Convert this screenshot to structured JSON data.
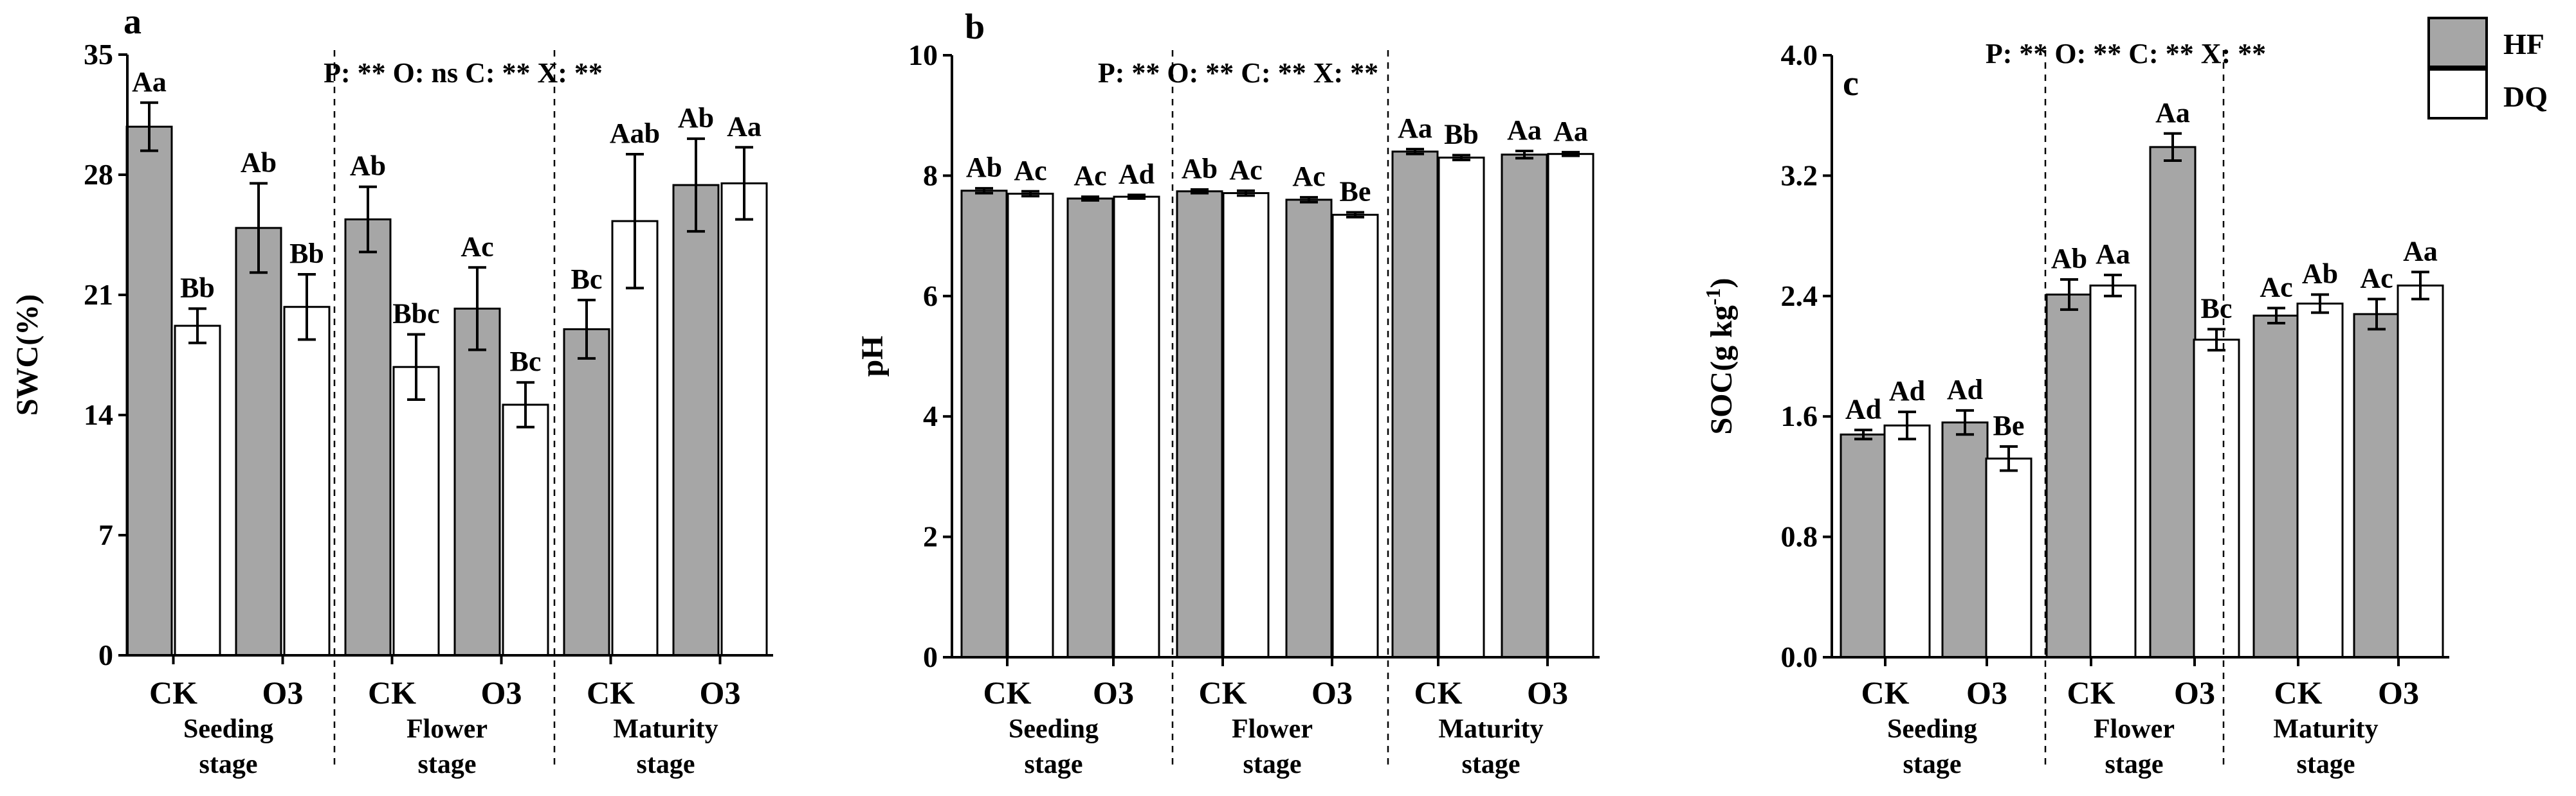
{
  "colors": {
    "HF": "#a6a6a6",
    "DQ": "#ffffff",
    "axis": "#000000"
  },
  "legend": {
    "entries": [
      "HF",
      "DQ"
    ]
  },
  "chart_data": [
    {
      "type": "bar",
      "panel": "a",
      "ylabel": "SWC(%)",
      "ylim": [
        0,
        35
      ],
      "yticks": [
        "0",
        "7",
        "14",
        "21",
        "28",
        "35"
      ],
      "categories": [
        "CK",
        "O3",
        "CK",
        "O3",
        "CK",
        "O3"
      ],
      "stages": [
        [
          "Seeding",
          "stage"
        ],
        [
          "Flower",
          "stage"
        ],
        [
          "Maturity",
          "stage"
        ]
      ],
      "stats_text": "P: ** O: ns C: ** X: **",
      "series": [
        {
          "name": "HF",
          "values": [
            30.8,
            24.9,
            25.4,
            20.2,
            19.0,
            27.4
          ],
          "errors": [
            1.4,
            2.6,
            1.9,
            2.4,
            1.7,
            2.7
          ],
          "labels": [
            "Aa",
            "Ab",
            "Ab",
            "Ac",
            "Bc",
            "Ab"
          ]
        },
        {
          "name": "DQ",
          "values": [
            19.2,
            20.3,
            16.8,
            14.6,
            25.3,
            27.5
          ],
          "errors": [
            1.0,
            1.9,
            1.9,
            1.3,
            3.9,
            2.1
          ],
          "labels": [
            "Bb",
            "Bb",
            "Bbc",
            "Bc",
            "Aab",
            "Aa"
          ]
        }
      ]
    },
    {
      "type": "bar",
      "panel": "b",
      "ylabel": "pH",
      "ylim": [
        0,
        10
      ],
      "yticks": [
        "0",
        "2",
        "4",
        "6",
        "8",
        "10"
      ],
      "categories": [
        "CK",
        "O3",
        "CK",
        "O3",
        "CK",
        "O3"
      ],
      "stages": [
        [
          "Seeding",
          "stage"
        ],
        [
          "Flower",
          "stage"
        ],
        [
          "Maturity",
          "stage"
        ]
      ],
      "stats_text": "P: ** O: ** C: ** X: **",
      "series": [
        {
          "name": "HF",
          "values": [
            7.75,
            7.62,
            7.74,
            7.6,
            8.4,
            8.35
          ],
          "errors": [
            0.04,
            0.03,
            0.03,
            0.04,
            0.04,
            0.06
          ],
          "labels": [
            "Ab",
            "Ac",
            "Ab",
            "Ac",
            "Aa",
            "Aa"
          ]
        },
        {
          "name": "DQ",
          "values": [
            7.7,
            7.65,
            7.71,
            7.35,
            8.3,
            8.36
          ],
          "errors": [
            0.04,
            0.03,
            0.04,
            0.04,
            0.04,
            0.03
          ],
          "labels": [
            "Ac",
            "Ad",
            "Ac",
            "Be",
            "Bb",
            "Aa"
          ]
        }
      ]
    },
    {
      "type": "bar",
      "panel": "c",
      "ylabel": "SOC(g kg",
      "ylabel_sup": "-1",
      "ylabel_end": ")",
      "ylim": [
        0,
        4.0
      ],
      "yticks": [
        "0.0",
        "0.8",
        "1.6",
        "2.4",
        "3.2",
        "4.0"
      ],
      "categories": [
        "CK",
        "O3",
        "CK",
        "O3",
        "CK",
        "O3"
      ],
      "stages": [
        [
          "Seeding",
          "stage"
        ],
        [
          "Flower",
          "stage"
        ],
        [
          "Maturity",
          "stage"
        ]
      ],
      "stats_text": "P: ** O: ** C: ** X: **",
      "series": [
        {
          "name": "HF",
          "values": [
            1.48,
            1.56,
            2.41,
            3.39,
            2.27,
            2.28
          ],
          "errors": [
            0.03,
            0.08,
            0.1,
            0.09,
            0.05,
            0.1
          ],
          "labels": [
            "Ad",
            "Ad",
            "Ab",
            "Aa",
            "Ac",
            "Ac"
          ]
        },
        {
          "name": "DQ",
          "values": [
            1.54,
            1.32,
            2.47,
            2.11,
            2.35,
            2.47
          ],
          "errors": [
            0.09,
            0.08,
            0.07,
            0.07,
            0.06,
            0.09
          ],
          "labels": [
            "Ad",
            "Be",
            "Aa",
            "Bc",
            "Ab",
            "Aa"
          ]
        }
      ]
    }
  ]
}
